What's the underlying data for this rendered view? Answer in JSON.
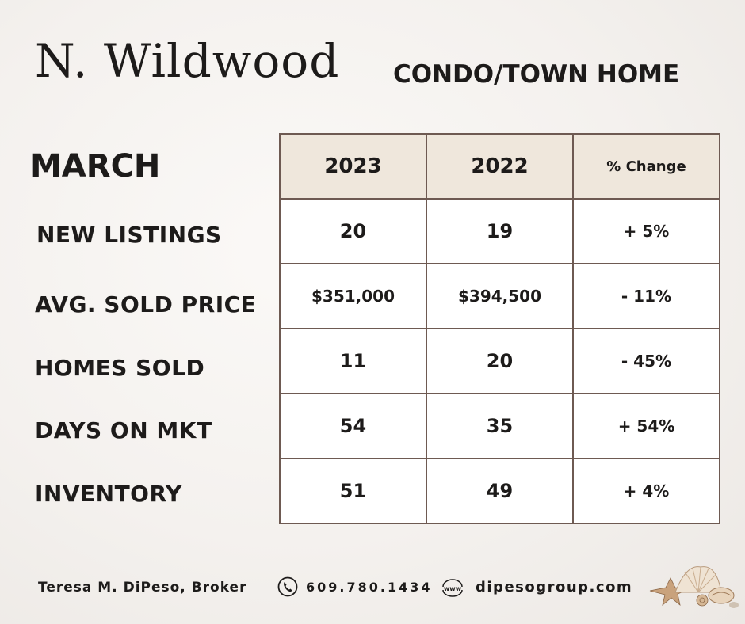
{
  "header": {
    "city": "N. Wildwood",
    "property_type": "CONDO/TOWN HOME"
  },
  "month": "MARCH",
  "table": {
    "columns": [
      "2023",
      "2022",
      "% Change"
    ],
    "rows": [
      {
        "label": "NEW LISTINGS",
        "y2023": "20",
        "y2022": "19",
        "change": "+ 5%"
      },
      {
        "label": "AVG. SOLD PRICE",
        "y2023": "$351,000",
        "y2022": "$394,500",
        "change": "- 11%"
      },
      {
        "label": "HOMES SOLD",
        "y2023": "11",
        "y2022": "20",
        "change": "- 45%"
      },
      {
        "label": "DAYS ON MKT",
        "y2023": "54",
        "y2022": "35",
        "change": "+ 54%"
      },
      {
        "label": "INVENTORY",
        "y2023": "51",
        "y2022": "49",
        "change": "+ 4%"
      }
    ]
  },
  "footer": {
    "broker": "Teresa M. DiPeso, Broker",
    "phone": "609.780.1434",
    "www_label": "www",
    "website": "dipesogroup.com",
    "icons": [
      "phone-icon",
      "www-globe-icon",
      "seashells-icon"
    ]
  },
  "colors": {
    "header_fill": "#efe7dc",
    "border": "#6e5a52",
    "text": "#1d1b1a"
  }
}
